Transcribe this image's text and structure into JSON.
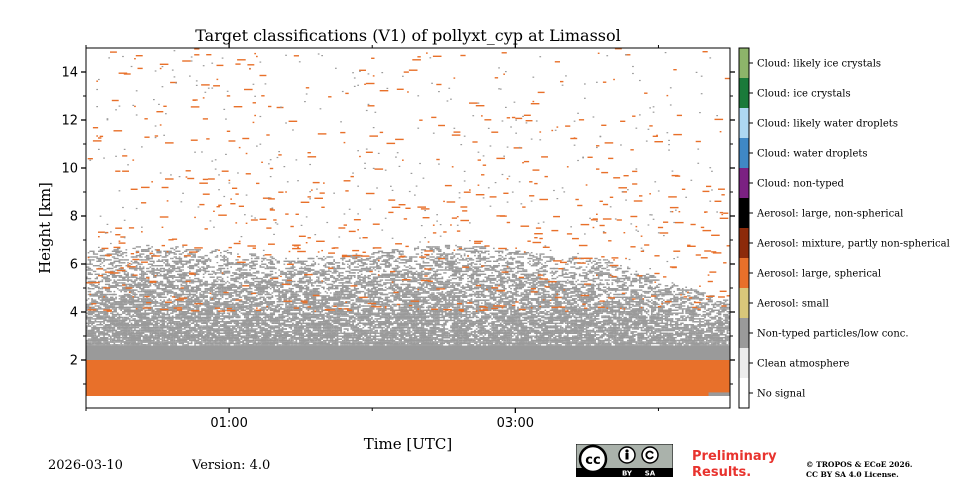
{
  "chart_data": {
    "type": "heatmap",
    "title": "Target classifications (V1) of pollyxt_cyp at Limassol",
    "xlabel": "Time [UTC]",
    "ylabel": "Height [km]",
    "x_range_utc_hours": [
      0.0,
      4.5
    ],
    "ylim": [
      0.0,
      15.0
    ],
    "x_ticks": [
      {
        "value": 1.0,
        "label": "01:00"
      },
      {
        "value": 3.0,
        "label": "03:00"
      }
    ],
    "x_minor_ticks": [
      0.0,
      2.0,
      4.0
    ],
    "y_ticks": [
      {
        "value": 2,
        "label": "2"
      },
      {
        "value": 4,
        "label": "4"
      },
      {
        "value": 6,
        "label": "6"
      },
      {
        "value": 8,
        "label": "8"
      },
      {
        "value": 10,
        "label": "10"
      },
      {
        "value": 12,
        "label": "12"
      },
      {
        "value": 14,
        "label": "14"
      }
    ],
    "classes": [
      {
        "code": 0,
        "label": "No signal",
        "color": "#ffffff"
      },
      {
        "code": 1,
        "label": "Clean atmosphere",
        "color": "#ececec"
      },
      {
        "code": 2,
        "label": "Non-typed particles/low conc.",
        "color": "#9a9a9a"
      },
      {
        "code": 3,
        "label": "Aerosol: small",
        "color": "#d9c77a"
      },
      {
        "code": 4,
        "label": "Aerosol: large, spherical",
        "color": "#e8702a"
      },
      {
        "code": 5,
        "label": "Aerosol: mixture, partly non-spherical",
        "color": "#8c2a0a"
      },
      {
        "code": 6,
        "label": "Aerosol: large, non-spherical",
        "color": "#000000"
      },
      {
        "code": 7,
        "label": "Cloud: non-typed",
        "color": "#7b2182"
      },
      {
        "code": 8,
        "label": "Cloud: water droplets",
        "color": "#3f88c5"
      },
      {
        "code": 9,
        "label": "Cloud: likely water droplets",
        "color": "#aed8f2"
      },
      {
        "code": 10,
        "label": "Cloud: ice crystals",
        "color": "#1a7a3a"
      },
      {
        "code": 11,
        "label": "Cloud: likely ice crystals",
        "color": "#8db46a"
      }
    ],
    "layers": [
      {
        "class": "Aerosol: large, spherical",
        "from_km": 0.5,
        "to_km": 2.0,
        "coverage": "dense"
      },
      {
        "class": "Non-typed particles/low conc.",
        "from_km": 2.0,
        "to_km": 2.6,
        "coverage": "dense"
      },
      {
        "class": "Non-typed particles/low conc.",
        "from_km": 2.6,
        "to_km": 6.5,
        "coverage": "speckled"
      },
      {
        "class": "Aerosol: large, spherical",
        "from_km": 4.0,
        "to_km": 15.0,
        "coverage": "sparse speckles"
      }
    ]
  },
  "footer": {
    "date": "2026-03-10",
    "version": "Version: 4.0",
    "preliminary_line1": "Preliminary",
    "preliminary_line2": "Results.",
    "copyright_line1": "© TROPOS & ECoE 2026.",
    "copyright_line2": "CC BY SA 4.0 License.",
    "license_badge": {
      "cc": "cc",
      "by": "BY",
      "sa": "SA"
    }
  },
  "colors": {
    "orange": "#e8702a",
    "grey": "#9a9a9a",
    "prelim_red": "#e8332e"
  }
}
